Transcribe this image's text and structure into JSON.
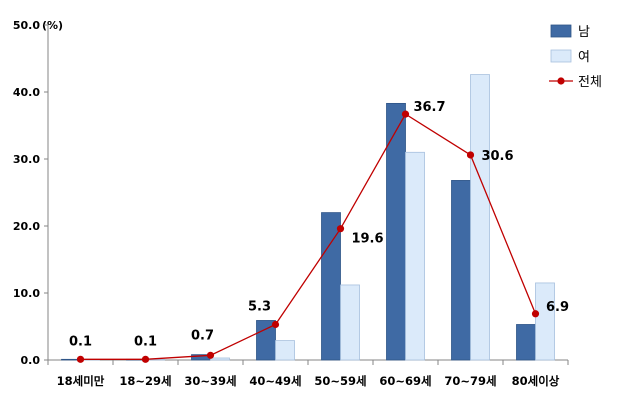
{
  "chart_data": {
    "type": "bar",
    "title": "",
    "xlabel": "",
    "ylabel": "(%)",
    "ylim": [
      0,
      50
    ],
    "yticks": [
      "0.0",
      "10.0",
      "20.0",
      "30.0",
      "40.0",
      "50.0"
    ],
    "ytick_values": [
      0,
      10,
      20,
      30,
      40,
      50
    ],
    "categories": [
      "18세미만",
      "18~29세",
      "30~39세",
      "40~49세",
      "50~59세",
      "60~69세",
      "70~79세",
      "80세이상"
    ],
    "series": [
      {
        "name": "남",
        "type": "bar",
        "color": "#3f6aa4",
        "values": [
          0.1,
          0.1,
          0.8,
          5.9,
          22.0,
          38.3,
          26.8,
          5.3
        ]
      },
      {
        "name": "여",
        "type": "bar",
        "color": "#dbeafa",
        "values": [
          0.1,
          0.1,
          0.3,
          2.9,
          11.2,
          31.0,
          42.6,
          11.5
        ]
      },
      {
        "name": "전체",
        "type": "line",
        "color": "#c00000",
        "values": [
          0.1,
          0.1,
          0.7,
          5.3,
          19.6,
          36.7,
          30.6,
          6.9
        ],
        "labels": [
          "0.1",
          "0.1",
          "0.7",
          "5.3",
          "19.6",
          "36.7",
          "30.6",
          "6.9"
        ]
      }
    ],
    "legend_position": "top-right",
    "grid": false
  }
}
